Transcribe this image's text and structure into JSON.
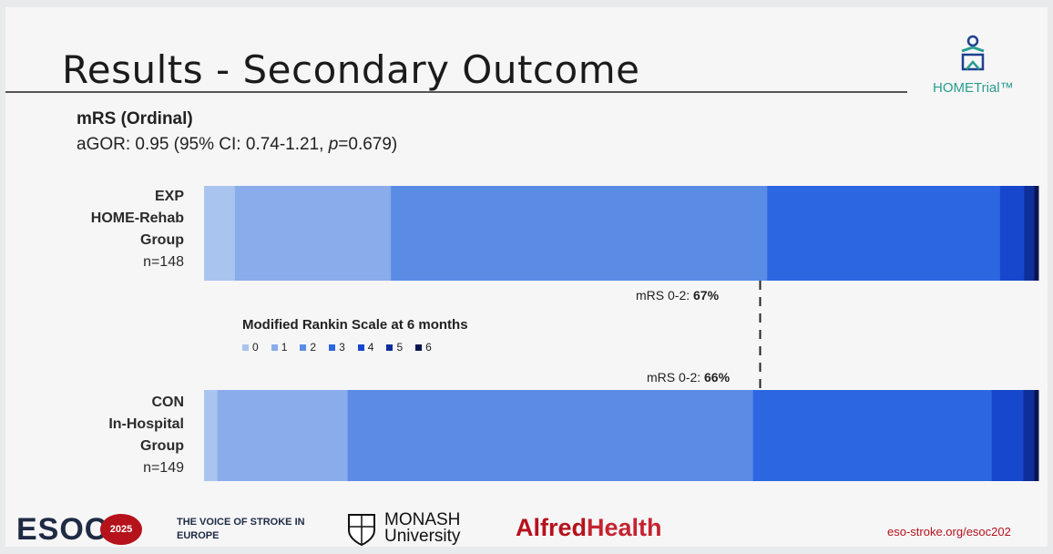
{
  "slide": {
    "title": "Results - Secondary Outcome",
    "logo_text": "HOMETrial™",
    "subtitle": "mRS (Ordinal)",
    "stats_prefix": "aGOR: 0.95 (95% CI: 0.74-1.21, ",
    "stats_p": "p",
    "stats_suffix": "=0.679)"
  },
  "groups": [
    {
      "line1": "EXP",
      "line2": "HOME-Rehab",
      "line3": "Group",
      "n": "n=148"
    },
    {
      "line1": "CON",
      "line2": "In-Hospital",
      "line3": "Group",
      "n": "n=149"
    }
  ],
  "chart_data": {
    "type": "bar",
    "orientation": "horizontal-stacked-100",
    "title": "Modified Rankin Scale at 6 months",
    "legend_placement": "center-left",
    "categories": [
      "EXP HOME-Rehab Group",
      "CON In-Hospital Group"
    ],
    "series": [
      {
        "name": "0",
        "color": "#a9c4ee",
        "values": [
          3.7,
          1.6
        ]
      },
      {
        "name": "1",
        "color": "#89acea",
        "values": [
          18.7,
          15.6
        ]
      },
      {
        "name": "2",
        "color": "#5a8ce6",
        "values": [
          45.1,
          48.6
        ]
      },
      {
        "name": "3",
        "color": "#2c66e0",
        "values": [
          27.9,
          28.6
        ]
      },
      {
        "name": "4",
        "color": "#1747cc",
        "values": [
          2.9,
          3.8
        ]
      },
      {
        "name": "5",
        "color": "#0e2e9a",
        "values": [
          1.2,
          1.3
        ]
      },
      {
        "name": "6",
        "color": "#0a1550",
        "values": [
          0.5,
          0.5
        ]
      }
    ],
    "annotations": [
      {
        "label": "mRS 0-2: ",
        "value": "67%"
      },
      {
        "label": "mRS 0-2: ",
        "value": "66%"
      }
    ]
  },
  "footer": {
    "esoc": "ESOC",
    "esoc_year": "2025",
    "voice": "THE VOICE OF STROKE IN EUROPE",
    "monash_line1": "MONASH",
    "monash_line2": "University",
    "alfred_a": "Alfred",
    "alfred_b": "Health",
    "url": "eso-stroke.org/esoc202"
  }
}
